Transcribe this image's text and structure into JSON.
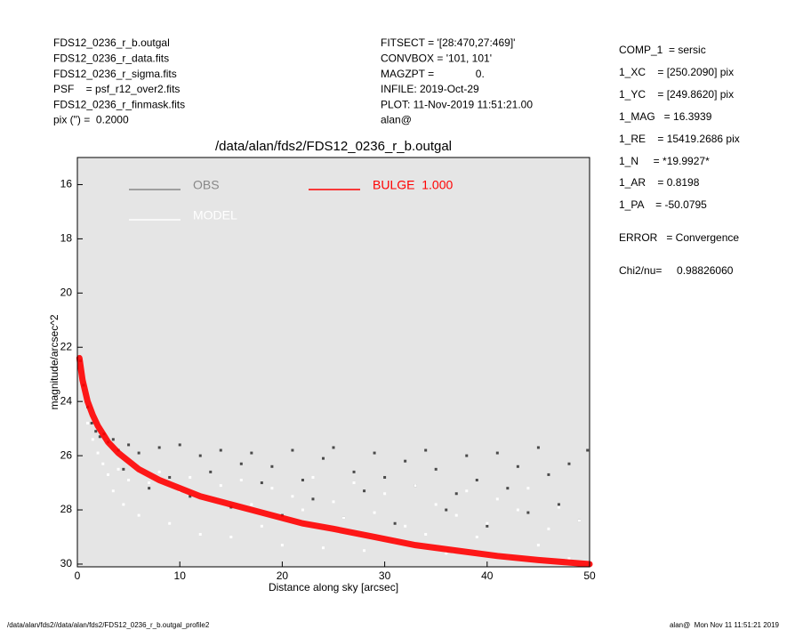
{
  "header": {
    "left": [
      "FDS12_0236_r_b.outgal",
      "FDS12_0236_r_data.fits",
      "FDS12_0236_r_sigma.fits",
      "PSF    = psf_r12_over2.fits",
      "FDS12_0236_r_finmask.fits",
      "pix (\") =  0.2000"
    ],
    "middle": [
      "FITSECT = '[28:470,27:469]'",
      "CONVBOX = '101, 101'",
      "MAGZPT =              0.",
      "INFILE: 2019-Oct-29",
      "PLOT: 11-Nov-2019 11:51:21.00",
      "alan@"
    ],
    "params": [
      "COMP_1  = sersic",
      "1_XC    = [250.2090] pix",
      "1_YC    = [249.8620] pix",
      "1_MAG   = 16.3939",
      "1_RE    = 15419.2686 pix",
      "1_N     = *19.9927*",
      "1_AR    = 0.8198",
      "1_PA    = -50.0795",
      "ERROR   = Convergence",
      "Chi2/nu=     0.98826060"
    ]
  },
  "footer": {
    "left": "/data/alan/fds2//data/alan/fds2/FDS12_0236_r_b.outgal_profile2",
    "right": "alan@  Mon Nov 11 11:51:21 2019"
  },
  "chart_data": {
    "type": "scatter",
    "title": "/data/alan/fds2/FDS12_0236_r_b.outgal",
    "x_label": "Distance along sky [arcsec]",
    "y_label": "magnitude/arcsec^2",
    "xlim": [
      0,
      50
    ],
    "xticks": [
      0,
      10,
      20,
      30,
      40,
      50
    ],
    "ylim": [
      30.1,
      15
    ],
    "yticks": [
      16,
      18,
      20,
      22,
      24,
      26,
      28,
      30
    ],
    "background": "#e5e5e5",
    "series": [
      {
        "name": "OBS",
        "color": "#4a4a4a",
        "legend_color": "#888888",
        "x": [
          0.3,
          0.6,
          1.0,
          1.4,
          1.8,
          2.2,
          2.6,
          3.0,
          3.5,
          4.0,
          4.5,
          5.0,
          6.0,
          7.0,
          8.0,
          9.0,
          10.0,
          11.0,
          12.0,
          13.0,
          14.0,
          15.0,
          16.0,
          17.0,
          18.0,
          19.0,
          20.0,
          21.0,
          22.0,
          23.0,
          24.0,
          25.0,
          26.0,
          27.0,
          28.0,
          29.0,
          30.0,
          31.0,
          32.0,
          33.0,
          34.0,
          35.0,
          36.0,
          37.0,
          38.0,
          39.0,
          40.0,
          41.0,
          42.0,
          43.0,
          44.0,
          45.0,
          46.0,
          47.0,
          48.0,
          49.0,
          49.8
        ],
        "values": [
          22.5,
          23.4,
          24.2,
          24.8,
          25.1,
          25.3,
          25.2,
          25.5,
          25.4,
          25.8,
          26.5,
          25.6,
          25.9,
          27.2,
          25.7,
          26.8,
          25.6,
          27.5,
          26.0,
          26.6,
          25.8,
          27.9,
          26.3,
          25.9,
          27.0,
          26.4,
          28.2,
          25.8,
          26.9,
          27.6,
          26.1,
          25.7,
          28.3,
          26.6,
          27.3,
          25.9,
          26.8,
          28.5,
          26.2,
          27.1,
          25.8,
          26.5,
          28.0,
          27.4,
          26.0,
          26.9,
          28.6,
          25.9,
          27.2,
          26.4,
          28.1,
          25.7,
          26.7,
          27.8,
          26.3,
          28.4,
          25.8
        ]
      },
      {
        "name": "MODEL",
        "color": "#ffffff",
        "legend_color": "#ffffff",
        "x": [
          1.0,
          1.5,
          2.0,
          2.5,
          3.0,
          3.5,
          4.0,
          4.5,
          5.0,
          6.0,
          7.0,
          8.0,
          9.0,
          10.0,
          11.0,
          12.0,
          13.0,
          14.0,
          15.0,
          16.0,
          17.0,
          18.0,
          19.0,
          20.0,
          21.0,
          22.0,
          23.0,
          24.0,
          25.0,
          26.0,
          27.0,
          28.0,
          29.0,
          30.0,
          31.0,
          32.0,
          33.0,
          34.0,
          35.0,
          36.0,
          37.0,
          38.0,
          39.0,
          40.0,
          41.0,
          42.0,
          43.0,
          44.0,
          45.0,
          46.0,
          47.0,
          48.0,
          49.0
        ],
        "values": [
          24.8,
          25.4,
          25.9,
          26.3,
          26.7,
          27.3,
          26.5,
          27.8,
          26.9,
          28.2,
          27.0,
          26.6,
          28.5,
          27.3,
          26.8,
          28.9,
          27.6,
          27.1,
          29.0,
          26.9,
          27.8,
          28.6,
          27.2,
          29.3,
          27.5,
          28.0,
          26.8,
          29.4,
          27.7,
          28.3,
          27.0,
          29.5,
          28.1,
          27.4,
          29.2,
          28.6,
          27.1,
          28.9,
          27.8,
          29.6,
          28.2,
          27.3,
          29.0,
          28.5,
          27.6,
          29.7,
          28.0,
          27.2,
          29.3,
          28.7,
          27.9,
          29.8,
          28.4
        ]
      },
      {
        "name": "BULGE  1.000",
        "color": "#ff0000",
        "kind": "line",
        "x": [
          0.2,
          0.5,
          1.0,
          1.5,
          2.0,
          3.0,
          4.0,
          5.0,
          6.0,
          8.0,
          10.0,
          12.0,
          15.0,
          17.0,
          20.0,
          22.0,
          25.0,
          29.0,
          33.0,
          37.0,
          41.0,
          45.0,
          50.0
        ],
        "values": [
          22.4,
          23.2,
          24.0,
          24.5,
          24.9,
          25.5,
          25.9,
          26.2,
          26.5,
          26.9,
          27.2,
          27.5,
          27.8,
          28.0,
          28.3,
          28.5,
          28.7,
          29.0,
          29.3,
          29.5,
          29.7,
          29.85,
          30.0
        ]
      }
    ]
  }
}
